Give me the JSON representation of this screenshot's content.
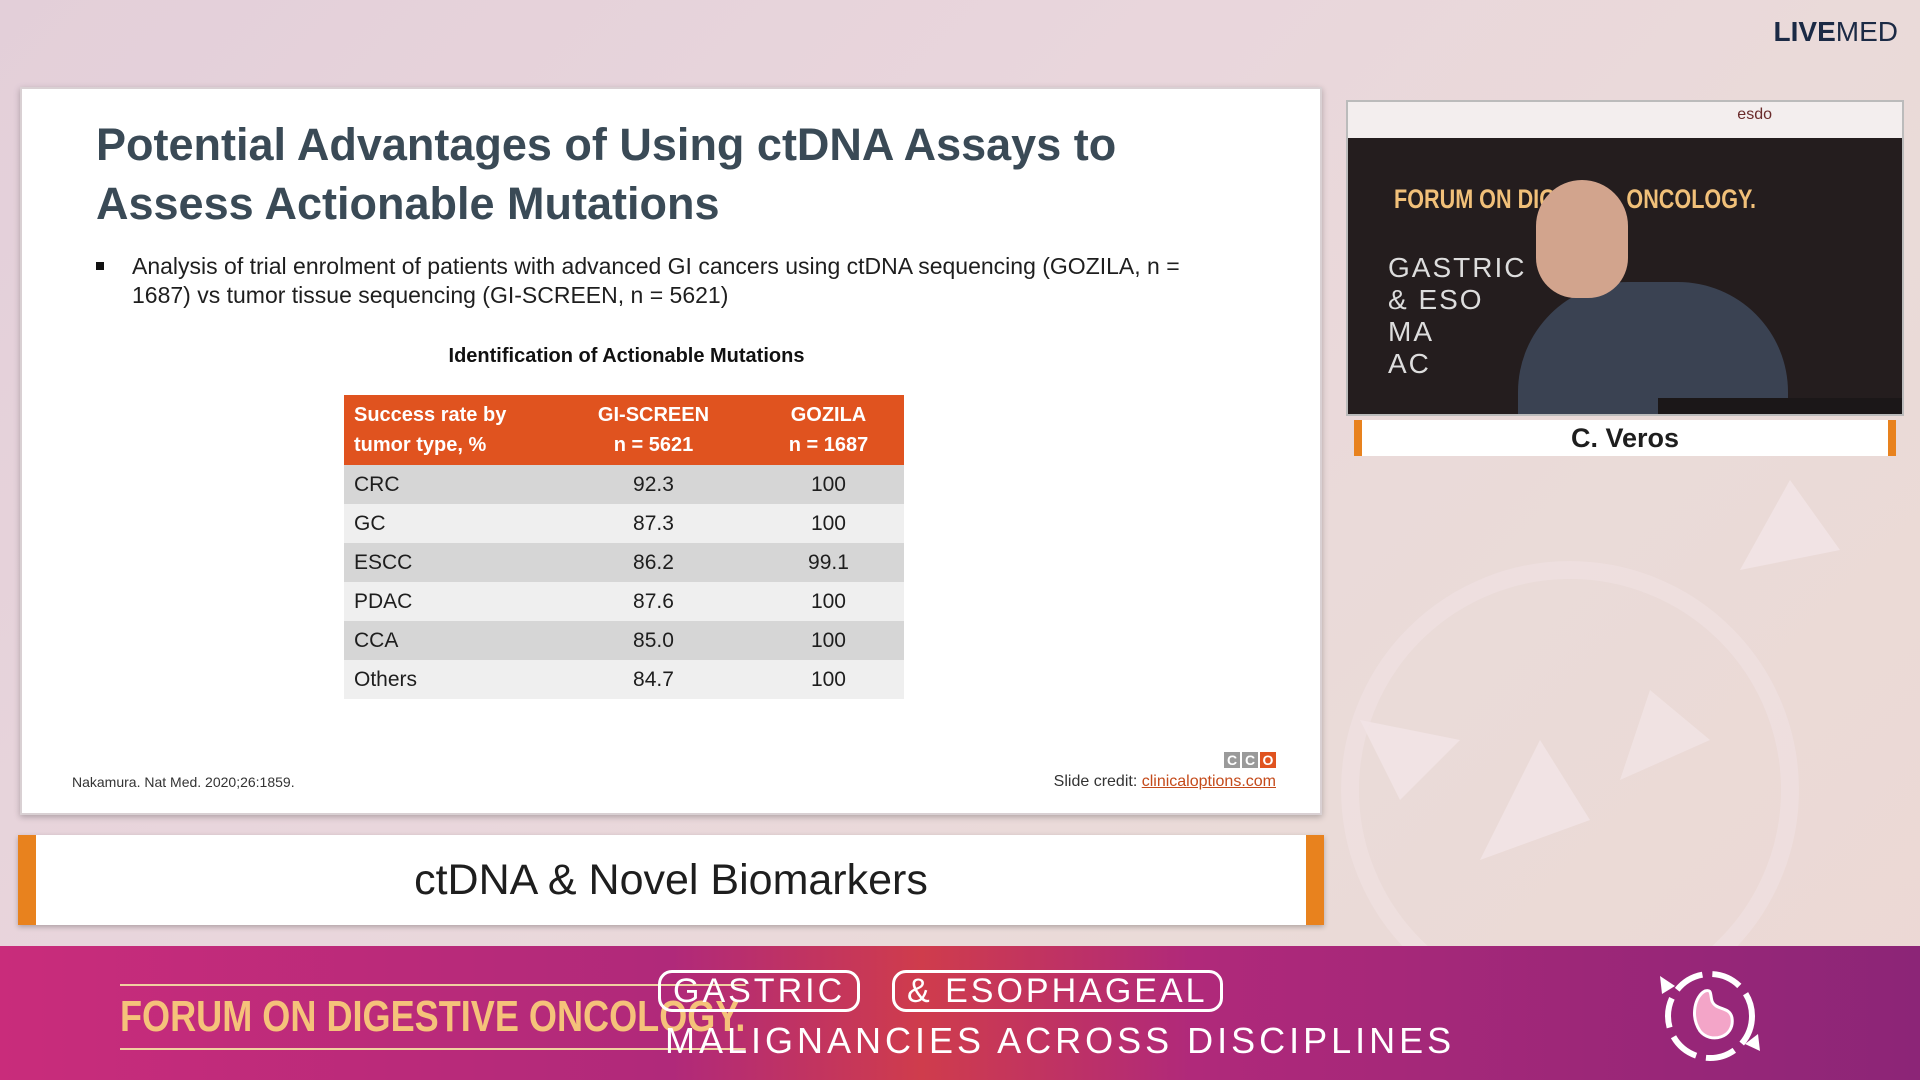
{
  "brand": {
    "live": "LIVE",
    "med": "MED"
  },
  "slide": {
    "title": "Potential Advantages of Using ctDNA Assays to Assess Actionable Mutations",
    "bullet": "Analysis of trial enrolment of patients with advanced GI cancers using ctDNA sequencing (GOZILA, n = 1687) vs tumor tissue sequencing (GI-SCREEN, n = 5621)",
    "table_title": "Identification of Actionable Mutations",
    "table": {
      "headers": [
        [
          "Success rate by",
          "tumor type, %"
        ],
        [
          "GI-SCREEN",
          "n = 5621"
        ],
        [
          "GOZILA",
          "n = 1687"
        ]
      ],
      "rows": [
        [
          "CRC",
          "92.3",
          "100"
        ],
        [
          "GC",
          "87.3",
          "100"
        ],
        [
          "ESCC",
          "86.2",
          "99.1"
        ],
        [
          "PDAC",
          "87.6",
          "100"
        ],
        [
          "CCA",
          "85.0",
          "100"
        ],
        [
          "Others",
          "84.7",
          "100"
        ]
      ]
    },
    "citation": "Nakamura. Nat Med. 2020;26:1859.",
    "cco_letters": [
      "C",
      "C",
      "O"
    ],
    "credit_label": "Slide credit: ",
    "credit_link": "clinicaloptions.com"
  },
  "topic": "ctDNA & Novel Biomarkers",
  "video": {
    "banner_text": "esdo",
    "forum_text": "FORUM ON DIGE",
    "forum_tail": "ONCOLOGY.",
    "stage_lines": [
      "GASTRIC",
      "& ESO",
      "MA",
      "AC"
    ]
  },
  "speaker_name": "C. Veros",
  "bottom_banner": {
    "forum": "FORUM ON DIGESTIVE ONCOLOGY.",
    "gastric": "GASTRIC",
    "esophageal": "& ESOPHAGEAL",
    "malignancies": "MALIGNANCIES ACROSS  DISCIPLINES"
  },
  "colors": {
    "table_header": "#e0531f",
    "accent_orange": "#e8821e",
    "title_gray": "#3a4a56",
    "banner_pink": "#c92c7b"
  }
}
